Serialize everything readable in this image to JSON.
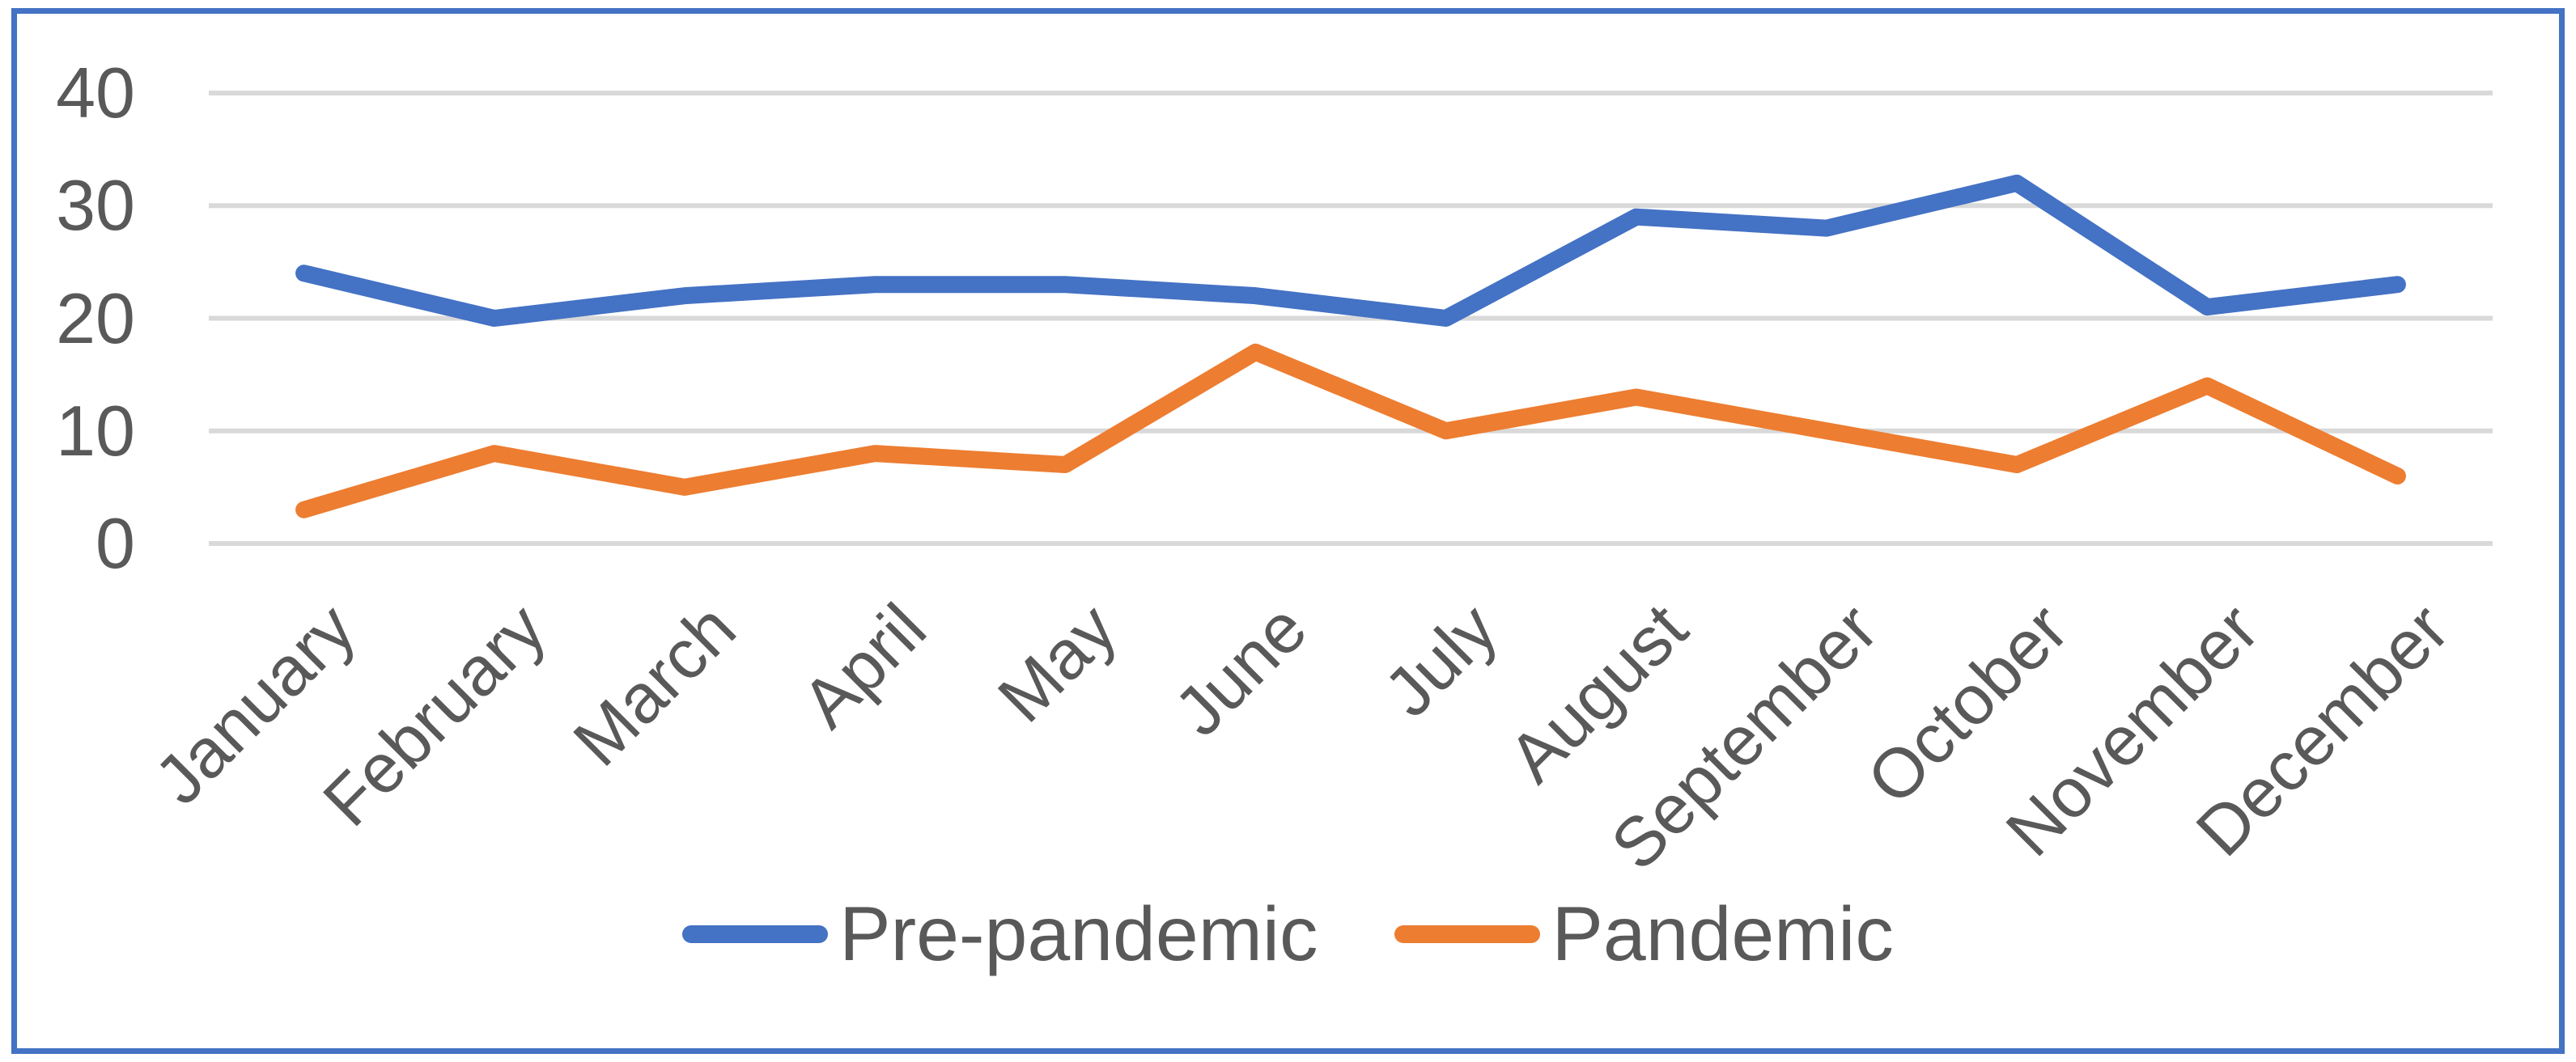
{
  "chart_data": {
    "type": "line",
    "title": "",
    "xlabel": "",
    "ylabel": "",
    "categories": [
      "January",
      "February",
      "March",
      "April",
      "May",
      "June",
      "July",
      "August",
      "September",
      "October",
      "November",
      "December"
    ],
    "series": [
      {
        "name": "Pre-pandemic",
        "color": "#4472C4",
        "values": [
          24,
          20,
          22,
          23,
          23,
          22,
          20,
          29,
          28,
          32,
          21,
          23
        ]
      },
      {
        "name": "Pandemic",
        "color": "#ED7D31",
        "values": [
          3,
          8,
          5,
          8,
          7,
          17,
          10,
          13,
          10,
          7,
          14,
          6
        ]
      }
    ],
    "ylim": [
      0,
      40
    ],
    "yticks": [
      0,
      10,
      20,
      30,
      40
    ],
    "grid": "horizontal-only",
    "legend_position": "bottom-center"
  },
  "legend": {
    "items": [
      {
        "label": "Pre-pandemic",
        "color": "#4472C4"
      },
      {
        "label": "Pandemic",
        "color": "#ED7D31"
      }
    ]
  },
  "colors": {
    "gridline": "#D9D9D9",
    "tick_label": "#595959",
    "frame_border": "#4472C4",
    "background": "#FFFFFF"
  }
}
